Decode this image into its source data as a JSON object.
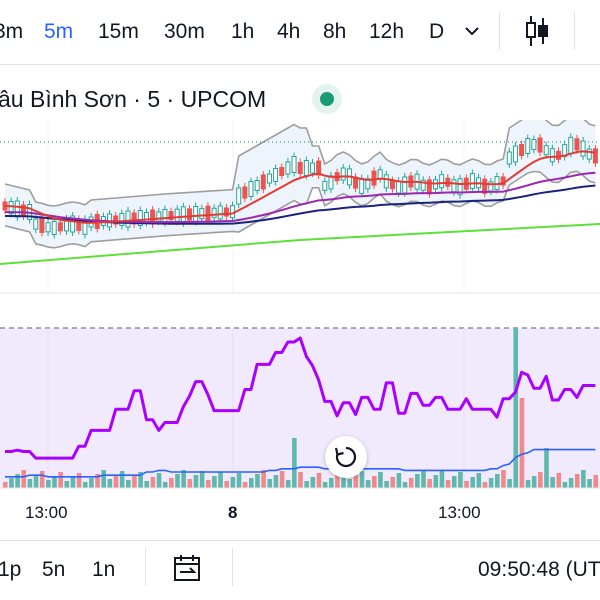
{
  "toolbar": {
    "timeframes": [
      "3m",
      "5m",
      "15m",
      "30m",
      "1h",
      "4h",
      "8h",
      "12h",
      "D"
    ],
    "active": "5m",
    "expand_icon": "chevron-down-icon",
    "chart_type_icon": "candlestick-icon"
  },
  "legend": {
    "title": "âu Bình Sơn · 5 · UPCOM",
    "status_color": "#1b9a76"
  },
  "time_axis": {
    "labels": [
      "13:00",
      "8",
      "13:00"
    ]
  },
  "bottom_bar": {
    "ranges": [
      "1p",
      "5n",
      "1n"
    ],
    "calendar_icon": "calendar-goto-icon",
    "clock": "09:50:48 (UT"
  },
  "reset_icon": "reset-chart-icon",
  "colors": {
    "up": "#26a69a",
    "down": "#ef5350",
    "active": "#2962ff",
    "oscillator": "#aa00ff",
    "oscillator_band": "#f1eafc",
    "ma_red": "#e53935",
    "ma_purple": "#9c27b0",
    "ma_navy": "#1a237e",
    "ma_green": "#5de039",
    "bollinger": "#9e9e9e"
  },
  "chart_data": {
    "type": "candlestick",
    "oscillator": [
      0.14,
      0.14,
      0.15,
      0.14,
      0.14,
      0.09,
      0.09,
      0.09,
      0.09,
      0.09,
      0.09,
      0.09,
      0.18,
      0.18,
      0.3,
      0.3,
      0.3,
      0.3,
      0.46,
      0.46,
      0.46,
      0.6,
      0.6,
      0.38,
      0.38,
      0.3,
      0.36,
      0.36,
      0.36,
      0.48,
      0.56,
      0.67,
      0.67,
      0.57,
      0.45,
      0.45,
      0.45,
      0.45,
      0.45,
      0.61,
      0.61,
      0.8,
      0.8,
      0.8,
      0.89,
      0.89,
      0.97,
      0.97,
      1.0,
      0.86,
      0.79,
      0.68,
      0.52,
      0.52,
      0.41,
      0.51,
      0.51,
      0.42,
      0.55,
      0.55,
      0.46,
      0.46,
      0.66,
      0.66,
      0.43,
      0.43,
      0.58,
      0.58,
      0.49,
      0.49,
      0.55,
      0.55,
      0.46,
      0.46,
      0.46,
      0.54,
      0.46,
      0.46,
      0.46,
      0.46,
      0.4,
      0.54,
      0.54,
      0.59,
      0.74,
      0.72,
      0.62,
      0.62,
      0.71,
      0.53,
      0.53,
      0.61,
      0.61,
      0.55,
      0.64,
      0.64,
      0.64
    ],
    "volume_ma": [
      0.07,
      0.07,
      0.07,
      0.07,
      0.08,
      0.08,
      0.08,
      0.07,
      0.07,
      0.07,
      0.07,
      0.07,
      0.07,
      0.07,
      0.07,
      0.07,
      0.08,
      0.08,
      0.08,
      0.08,
      0.08,
      0.08,
      0.08,
      0.1,
      0.1,
      0.11,
      0.11,
      0.1,
      0.1,
      0.1,
      0.1,
      0.1,
      0.1,
      0.1,
      0.1,
      0.1,
      0.1,
      0.1,
      0.1,
      0.1,
      0.1,
      0.1,
      0.1,
      0.11,
      0.11,
      0.12,
      0.12,
      0.12,
      0.13,
      0.13,
      0.13,
      0.13,
      0.12,
      0.12,
      0.12,
      0.12,
      0.12,
      0.12,
      0.12,
      0.12,
      0.12,
      0.12,
      0.12,
      0.12,
      0.12,
      0.11,
      0.11,
      0.11,
      0.11,
      0.11,
      0.11,
      0.11,
      0.11,
      0.11,
      0.11,
      0.11,
      0.11,
      0.11,
      0.11,
      0.12,
      0.12,
      0.14,
      0.15,
      0.19,
      0.21,
      0.22,
      0.24,
      0.24,
      0.24,
      0.24,
      0.24,
      0.24,
      0.24,
      0.24,
      0.24,
      0.24,
      0.24
    ]
  }
}
